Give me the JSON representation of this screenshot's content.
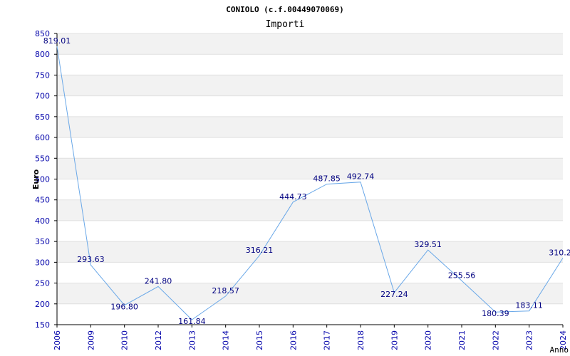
{
  "chart_data": {
    "type": "line",
    "title": "CONIOLO (c.f.00449070069)",
    "subtitle": "Importi",
    "xlabel": "Anno",
    "ylabel": "Euro",
    "categories": [
      "2006",
      "2009",
      "2010",
      "2012",
      "2013",
      "2014",
      "2015",
      "2016",
      "2017",
      "2018",
      "2019",
      "2020",
      "2021",
      "2022",
      "2023",
      "2024"
    ],
    "values": [
      819.01,
      293.63,
      196.8,
      241.8,
      161.84,
      218.57,
      316.21,
      444.73,
      487.85,
      492.74,
      227.24,
      329.51,
      255.56,
      180.39,
      183.11,
      310.2
    ],
    "data_labels": [
      "819.01",
      "293.63",
      "196.80",
      "241.80",
      "161.84",
      "218.57",
      "316.21",
      "444.73",
      "487.85",
      "492.74",
      "227.24",
      "329.51",
      "255.56",
      "180.39",
      "183.11",
      "310.2"
    ],
    "ylim": [
      150,
      850
    ],
    "yticks": [
      150,
      200,
      250,
      300,
      350,
      400,
      450,
      500,
      550,
      600,
      650,
      700,
      750,
      800,
      850
    ],
    "grid": true,
    "colors": {
      "line": "#6aa8e8",
      "band": "#f2f2f2",
      "gridline": "#e0e0e0",
      "tick_label": "#0000aa",
      "data_label": "#000080",
      "title": "#000000"
    }
  }
}
